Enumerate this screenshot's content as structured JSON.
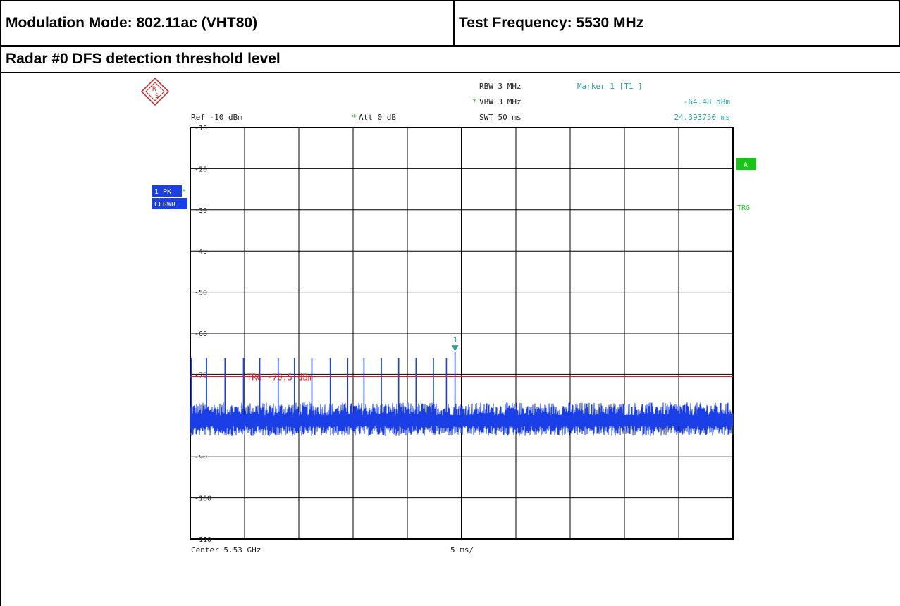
{
  "header": {
    "modulation": "Modulation Mode: 802.11ac (VHT80)",
    "frequency": "Test Frequency: 5530 MHz",
    "subtitle": "Radar #0 DFS detection threshold level"
  },
  "analyzer": {
    "ref_level": "Ref -10 dBm",
    "att": "Att  0 dB",
    "att_star": "*",
    "rbw": "RBW 3 MHz",
    "vbw": "VBW 3 MHz",
    "vbw_star": "*",
    "swt": "SWT 50 ms",
    "marker_title": "Marker 1 [T1 ]",
    "marker_level": "-64.48 dBm",
    "marker_time": "24.393750 ms",
    "trace_badge_1": "1 PK",
    "trace_badge_2": "CLRWR",
    "badge_a": "A",
    "badge_trg": "TRG",
    "center": "Center 5.53 GHz",
    "span": "5 ms/",
    "trigger_label": "TRG -70.5 dBm",
    "marker_number": "1"
  },
  "colors": {
    "trace": "#1a3fe6",
    "trigger_line": "#d42020",
    "marker": "#2a9fa0",
    "badge_blue": "#1a3fe6",
    "badge_green": "#19c419",
    "marker_text": "#2a9fa0"
  },
  "chart_data": {
    "type": "line",
    "xlabel": "",
    "ylabel": "",
    "xlim": [
      0,
      50
    ],
    "ylim": [
      -115,
      -10
    ],
    "x_unit": "ms",
    "y_unit": "dBm",
    "y_ticks": [
      -10,
      -20,
      -30,
      -40,
      -50,
      -60,
      -70,
      -90,
      -100,
      -110
    ],
    "grid": true,
    "noise_floor_dbm": -81,
    "trigger_level_dbm": -70.5,
    "marker": {
      "x": 24.39375,
      "y": -64.48
    },
    "series": [
      {
        "name": "1 PK CLRWR",
        "pulse_times_ms": [
          0.1,
          1.5,
          3.2,
          4.9,
          6.4,
          8.1,
          9.6,
          11.2,
          12.9,
          14.5,
          16.0,
          17.6,
          19.2,
          20.8,
          22.4,
          23.6,
          24.39
        ],
        "pulse_peaks_dbm": [
          -66,
          -66,
          -66,
          -66,
          -66,
          -66,
          -66,
          -66,
          -66,
          -66,
          -66,
          -66,
          -66,
          -66,
          -66,
          -66,
          -64.48
        ]
      }
    ]
  }
}
